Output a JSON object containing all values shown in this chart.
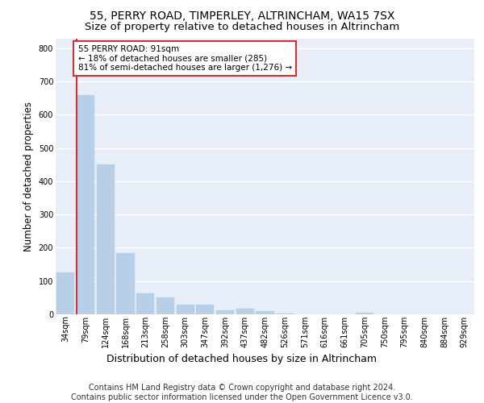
{
  "title1": "55, PERRY ROAD, TIMPERLEY, ALTRINCHAM, WA15 7SX",
  "title2": "Size of property relative to detached houses in Altrincham",
  "xlabel": "Distribution of detached houses by size in Altrincham",
  "ylabel": "Number of detached properties",
  "categories": [
    "34sqm",
    "79sqm",
    "124sqm",
    "168sqm",
    "213sqm",
    "258sqm",
    "303sqm",
    "347sqm",
    "392sqm",
    "437sqm",
    "482sqm",
    "526sqm",
    "571sqm",
    "616sqm",
    "661sqm",
    "705sqm",
    "750sqm",
    "795sqm",
    "840sqm",
    "884sqm",
    "929sqm"
  ],
  "values": [
    125,
    660,
    450,
    185,
    62,
    50,
    28,
    28,
    13,
    16,
    10,
    3,
    0,
    0,
    0,
    5,
    0,
    0,
    0,
    0,
    0
  ],
  "bar_color": "#b8cfe8",
  "bar_edge_color": "#b8cfe8",
  "highlight_color": "#cc3333",
  "annotation_text": "55 PERRY ROAD: 91sqm\n← 18% of detached houses are smaller (285)\n81% of semi-detached houses are larger (1,276) →",
  "annotation_box_color": "white",
  "annotation_box_edge_color": "#cc3333",
  "ylim": [
    0,
    830
  ],
  "yticks": [
    0,
    100,
    200,
    300,
    400,
    500,
    600,
    700,
    800
  ],
  "footer_text": "Contains HM Land Registry data © Crown copyright and database right 2024.\nContains public sector information licensed under the Open Government Licence v3.0.",
  "plot_bg_color": "#e8eef8",
  "grid_color": "white",
  "title1_fontsize": 10,
  "title2_fontsize": 9.5,
  "tick_fontsize": 7,
  "ylabel_fontsize": 8.5,
  "xlabel_fontsize": 9,
  "footer_fontsize": 7,
  "ann_fontsize": 7.5
}
